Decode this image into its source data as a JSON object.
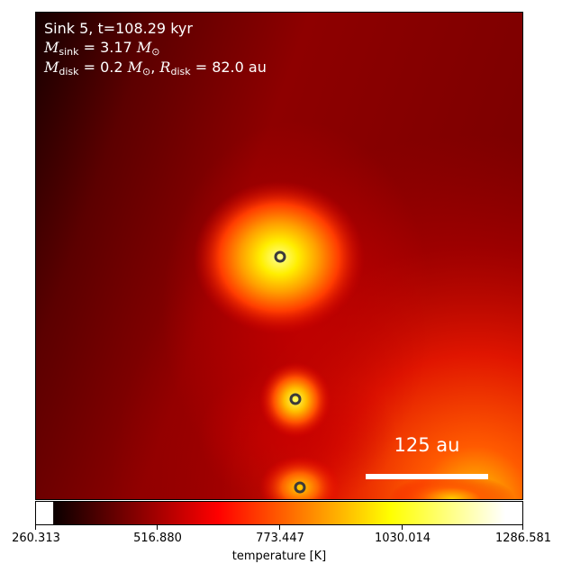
{
  "panel": {
    "title": "Sink 5, t=108.29 kyr",
    "mass_sink": "M_sink = 3.17 M⊙",
    "mass_disk": "M_disk = 0.2 M⊙, R_disk = 82.0 au",
    "scale_bar_label": "125 au"
  },
  "colorbar": {
    "label": "temperature [K]",
    "ticks": [
      "260.313",
      "516.880",
      "773.447",
      "1030.014",
      "1286.581"
    ],
    "colormap": "hot"
  },
  "sinks": [
    "sink",
    "sink",
    "sink"
  ]
}
